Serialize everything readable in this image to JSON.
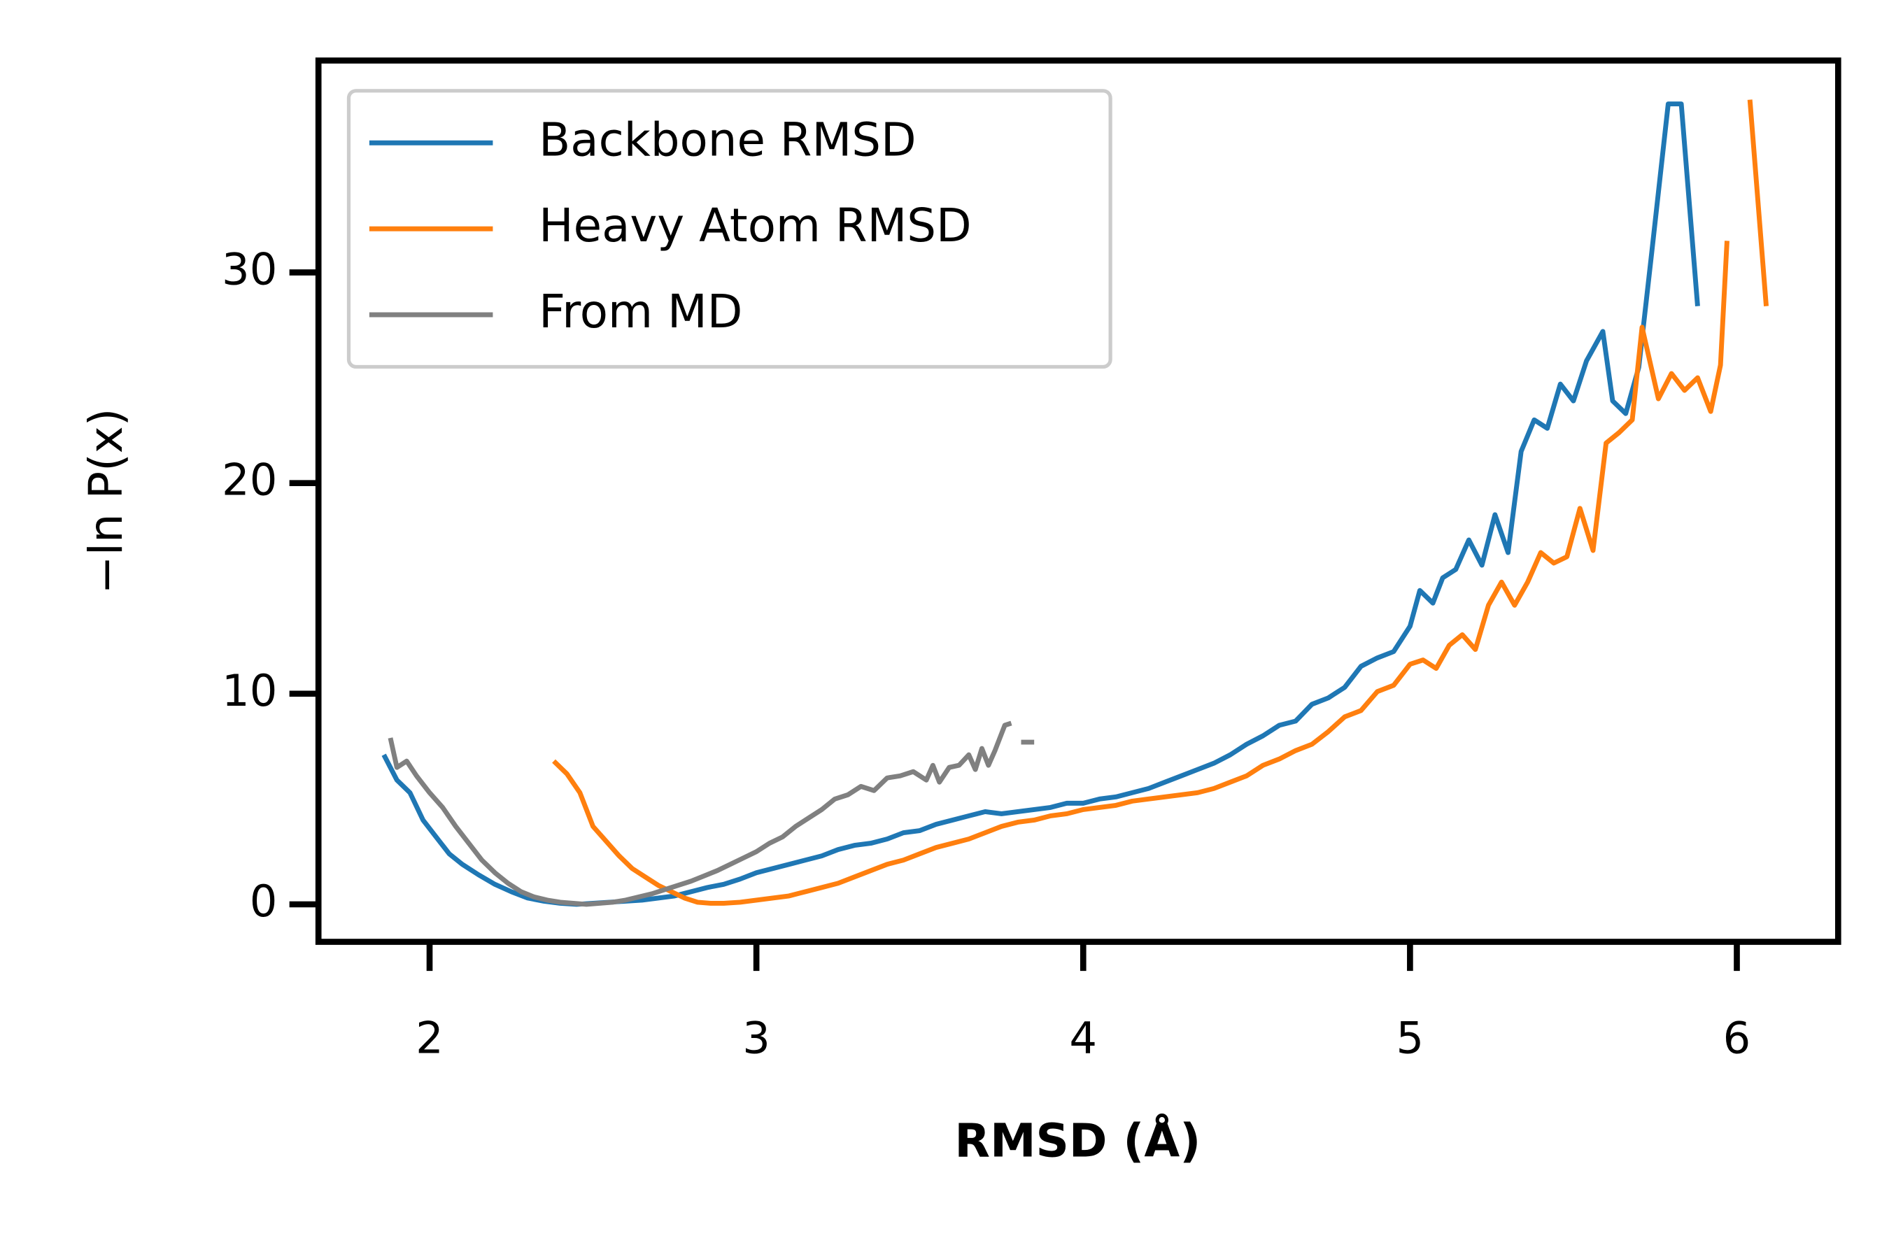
{
  "chart_data": {
    "type": "line",
    "xlabel": "RMSD (Å)",
    "ylabel": "−ln P(x)",
    "xlim": [
      1.66,
      6.31
    ],
    "ylim": [
      -1.78,
      40.06
    ],
    "xticks": [
      2,
      3,
      4,
      5,
      6
    ],
    "yticks": [
      0,
      10,
      20,
      30
    ],
    "legend": "upper left",
    "series": [
      {
        "name": "Backbone RMSD",
        "color": "#1f77b4",
        "x": [
          1.86,
          1.9,
          1.94,
          1.98,
          2.02,
          2.06,
          2.1,
          2.15,
          2.2,
          2.25,
          2.3,
          2.35,
          2.4,
          2.45,
          2.5,
          2.55,
          2.6,
          2.65,
          2.7,
          2.75,
          2.8,
          2.85,
          2.9,
          2.95,
          3.0,
          3.05,
          3.1,
          3.15,
          3.2,
          3.25,
          3.3,
          3.35,
          3.4,
          3.45,
          3.5,
          3.55,
          3.6,
          3.65,
          3.7,
          3.75,
          3.8,
          3.85,
          3.9,
          3.95,
          4.0,
          4.05,
          4.1,
          4.15,
          4.2,
          4.25,
          4.3,
          4.35,
          4.4,
          4.45,
          4.5,
          4.55,
          4.6,
          4.65,
          4.7,
          4.75,
          4.8,
          4.85,
          4.9,
          4.95,
          5.0,
          5.03,
          5.07,
          5.1,
          5.14,
          5.18,
          5.22,
          5.26,
          5.3,
          5.34,
          5.38,
          5.42,
          5.46,
          5.5,
          5.54,
          5.59,
          5.62,
          5.66,
          5.7,
          5.74,
          5.79,
          5.83,
          5.88
        ],
        "values": [
          7.1,
          5.9,
          5.3,
          4.0,
          3.2,
          2.4,
          1.9,
          1.4,
          0.95,
          0.6,
          0.3,
          0.15,
          0.05,
          0,
          0.05,
          0.1,
          0.15,
          0.2,
          0.3,
          0.4,
          0.6,
          0.8,
          0.95,
          1.2,
          1.5,
          1.7,
          1.9,
          2.1,
          2.3,
          2.6,
          2.8,
          2.9,
          3.1,
          3.4,
          3.5,
          3.8,
          4.0,
          4.2,
          4.4,
          4.3,
          4.4,
          4.5,
          4.6,
          4.8,
          4.8,
          5.0,
          5.1,
          5.3,
          5.5,
          5.8,
          6.1,
          6.4,
          6.7,
          7.1,
          7.6,
          8.0,
          8.5,
          8.7,
          9.5,
          9.8,
          10.3,
          11.3,
          11.7,
          12.0,
          13.2,
          14.9,
          14.3,
          15.5,
          15.9,
          17.3,
          16.1,
          18.5,
          16.7,
          21.5,
          23.0,
          22.6,
          24.7,
          23.9,
          25.8,
          27.2,
          23.9,
          23.3,
          25.5,
          31.0,
          38.0,
          38.0,
          28.4
        ]
      },
      {
        "name": "Heavy Atom RMSD",
        "color": "#ff7f0e",
        "x": [
          2.38,
          2.42,
          2.46,
          2.5,
          2.54,
          2.58,
          2.62,
          2.66,
          2.7,
          2.74,
          2.78,
          2.82,
          2.86,
          2.9,
          2.95,
          3.0,
          3.05,
          3.1,
          3.15,
          3.2,
          3.25,
          3.3,
          3.35,
          3.4,
          3.45,
          3.5,
          3.55,
          3.6,
          3.65,
          3.7,
          3.75,
          3.8,
          3.85,
          3.9,
          3.95,
          4.0,
          4.05,
          4.1,
          4.15,
          4.2,
          4.25,
          4.3,
          4.35,
          4.4,
          4.45,
          4.5,
          4.55,
          4.6,
          4.65,
          4.7,
          4.75,
          4.8,
          4.85,
          4.9,
          4.95,
          5.0,
          5.04,
          5.08,
          5.12,
          5.16,
          5.2,
          5.24,
          5.28,
          5.32,
          5.36,
          5.4,
          5.44,
          5.48,
          5.52,
          5.56,
          5.6,
          5.64,
          5.68,
          5.71,
          5.76,
          5.8,
          5.84,
          5.88,
          5.92,
          5.95,
          5.97,
          6.0,
          6.04,
          6.09
        ],
        "values": [
          6.8,
          6.2,
          5.3,
          3.7,
          3.0,
          2.3,
          1.7,
          1.3,
          0.9,
          0.6,
          0.3,
          0.1,
          0.05,
          0.05,
          0.1,
          0.2,
          0.3,
          0.4,
          0.6,
          0.8,
          1.0,
          1.3,
          1.6,
          1.9,
          2.1,
          2.4,
          2.7,
          2.9,
          3.1,
          3.4,
          3.7,
          3.9,
          4.0,
          4.2,
          4.3,
          4.5,
          4.6,
          4.7,
          4.9,
          5.0,
          5.1,
          5.2,
          5.3,
          5.5,
          5.8,
          6.1,
          6.6,
          6.9,
          7.3,
          7.6,
          8.2,
          8.9,
          9.2,
          10.1,
          10.4,
          11.4,
          11.6,
          11.2,
          12.3,
          12.8,
          12.1,
          14.2,
          15.3,
          14.2,
          15.3,
          16.7,
          16.2,
          16.5,
          18.8,
          16.8,
          21.9,
          22.4,
          23.0,
          27.4,
          24.0,
          25.2,
          24.4,
          25.0,
          23.4,
          25.6,
          31.5,
          null,
          38.2,
          28.4
        ]
      },
      {
        "name": "From MD",
        "color": "#808080",
        "x": [
          1.88,
          1.9,
          1.93,
          1.96,
          2.0,
          2.04,
          2.08,
          2.12,
          2.16,
          2.2,
          2.24,
          2.28,
          2.32,
          2.36,
          2.4,
          2.44,
          2.48,
          2.52,
          2.56,
          2.6,
          2.64,
          2.68,
          2.72,
          2.76,
          2.8,
          2.84,
          2.88,
          2.92,
          2.96,
          3.0,
          3.04,
          3.08,
          3.12,
          3.16,
          3.2,
          3.24,
          3.28,
          3.32,
          3.36,
          3.4,
          3.44,
          3.48,
          3.52,
          3.54,
          3.56,
          3.59,
          3.62,
          3.65,
          3.67,
          3.69,
          3.71,
          3.73,
          3.76,
          3.78,
          3.8,
          3.81,
          3.85
        ],
        "values": [
          7.9,
          6.5,
          6.8,
          6.1,
          5.3,
          4.6,
          3.7,
          2.9,
          2.1,
          1.5,
          1.0,
          0.6,
          0.35,
          0.2,
          0.1,
          0.05,
          0,
          0.05,
          0.1,
          0.2,
          0.35,
          0.5,
          0.7,
          0.9,
          1.1,
          1.35,
          1.6,
          1.9,
          2.2,
          2.5,
          2.9,
          3.2,
          3.7,
          4.1,
          4.5,
          5.0,
          5.2,
          5.6,
          5.4,
          6.0,
          6.1,
          6.3,
          5.9,
          6.6,
          5.8,
          6.5,
          6.6,
          7.1,
          6.4,
          7.4,
          6.6,
          7.3,
          8.5,
          8.6,
          null,
          7.7,
          7.7
        ]
      }
    ]
  }
}
